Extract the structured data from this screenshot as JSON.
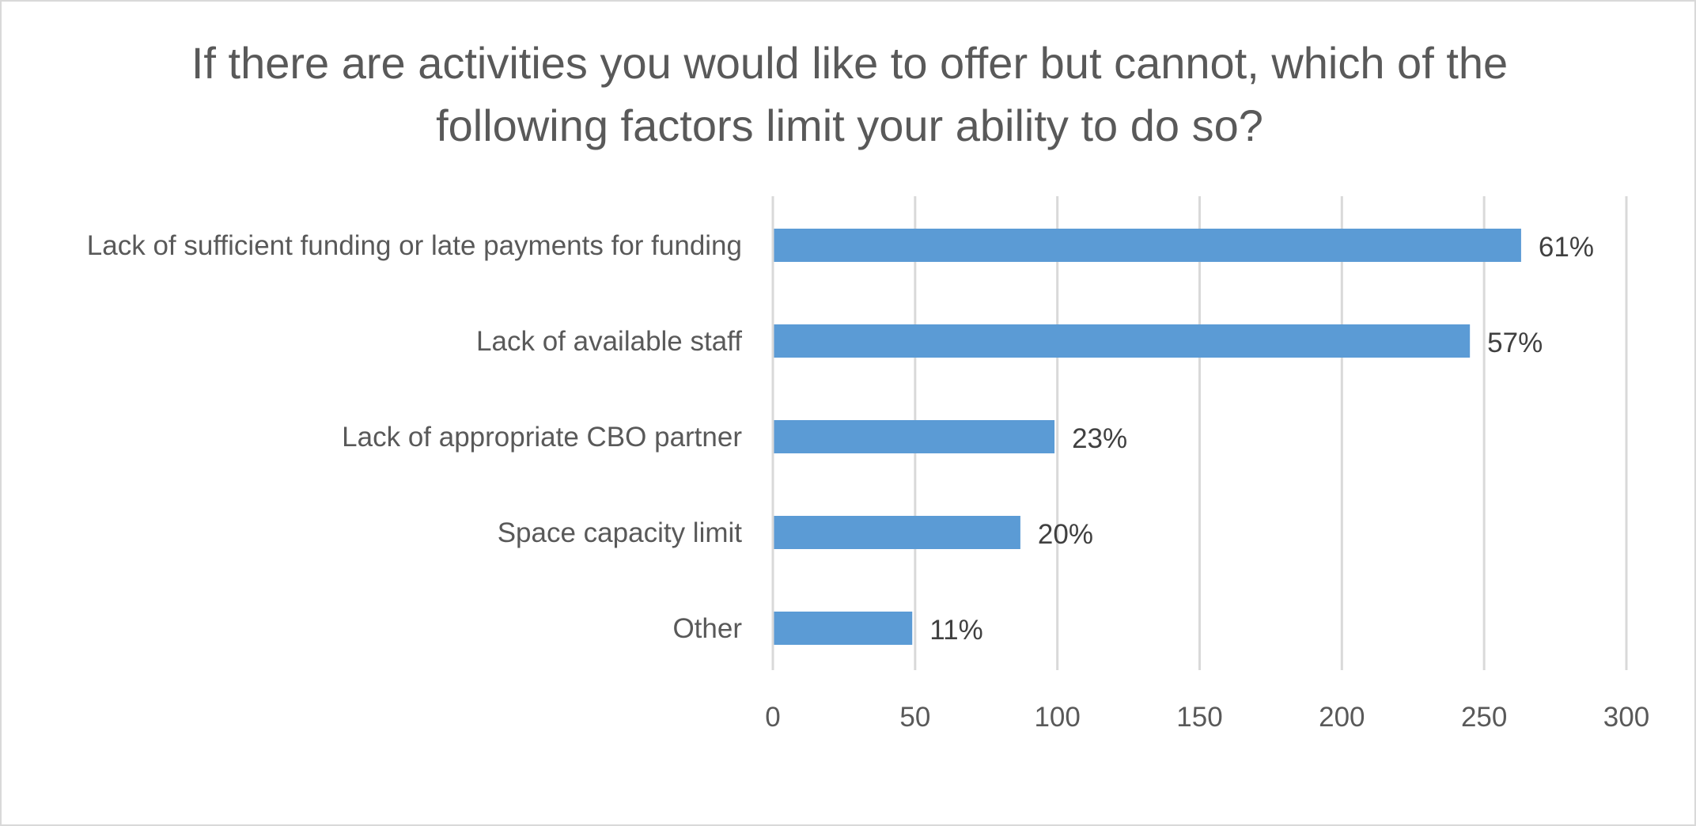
{
  "chart_data": {
    "type": "bar",
    "orientation": "horizontal",
    "title": "If there are activities you would like to offer but cannot, which of the following factors limit your ability to do so?",
    "categories": [
      "Lack of sufficient funding or late payments for funding",
      "Lack of available staff",
      "Lack of appropriate CBO partner",
      "Space capacity limit",
      "Other"
    ],
    "values": [
      263,
      245,
      99,
      87,
      49
    ],
    "data_labels": [
      "61%",
      "57%",
      "23%",
      "20%",
      "11%"
    ],
    "xlim": [
      0,
      300
    ],
    "x_ticks": [
      0,
      50,
      100,
      150,
      200,
      250,
      300
    ],
    "xlabel": "",
    "ylabel": "",
    "grid": "vertical",
    "legend": "none",
    "bar_color": "#5b9bd5"
  }
}
